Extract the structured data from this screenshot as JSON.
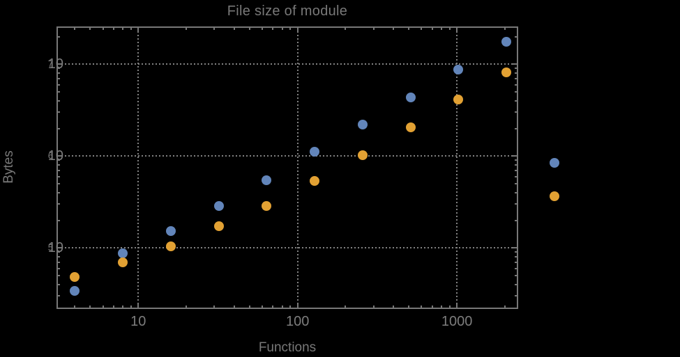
{
  "chart_data": {
    "type": "scatter",
    "title": "File size of module",
    "xlabel": "Functions",
    "ylabel": "Bytes",
    "x_scale": "log",
    "y_scale": "log",
    "xlim": [
      3.1,
      2400
    ],
    "ylim": [
      22000,
      25400000
    ],
    "grid": "dotted",
    "legend": "none",
    "x": [
      4,
      8,
      16,
      32,
      64,
      128,
      256,
      512,
      1024,
      2048,
      4096
    ],
    "series": [
      {
        "name": "series-1-blue",
        "color": "#6285ba",
        "values": [
          34000,
          87000,
          152000,
          288000,
          549000,
          1110000,
          2220000,
          4380000,
          8800000,
          17600000,
          840000
        ]
      },
      {
        "name": "series-2-orange",
        "color": "#e2a133",
        "values": [
          48500,
          70000,
          104000,
          173000,
          288000,
          538000,
          1030000,
          2060000,
          4150000,
          8200000,
          365000
        ]
      }
    ],
    "x_ticks": [
      {
        "value": 10,
        "label": "10"
      },
      {
        "value": 100,
        "label": "100"
      },
      {
        "value": 1000,
        "label": "1000"
      }
    ],
    "y_ticks": [
      {
        "value": 100000,
        "base": "10",
        "exp": "5"
      },
      {
        "value": 1000000,
        "base": "10",
        "exp": "6"
      },
      {
        "value": 10000000,
        "base": "10",
        "exp": "7"
      }
    ],
    "colors": {
      "background": "#000000",
      "frame": "#787878",
      "grid": "#828282",
      "tick_text": "#7d7d7d",
      "title_text": "#787878"
    }
  }
}
